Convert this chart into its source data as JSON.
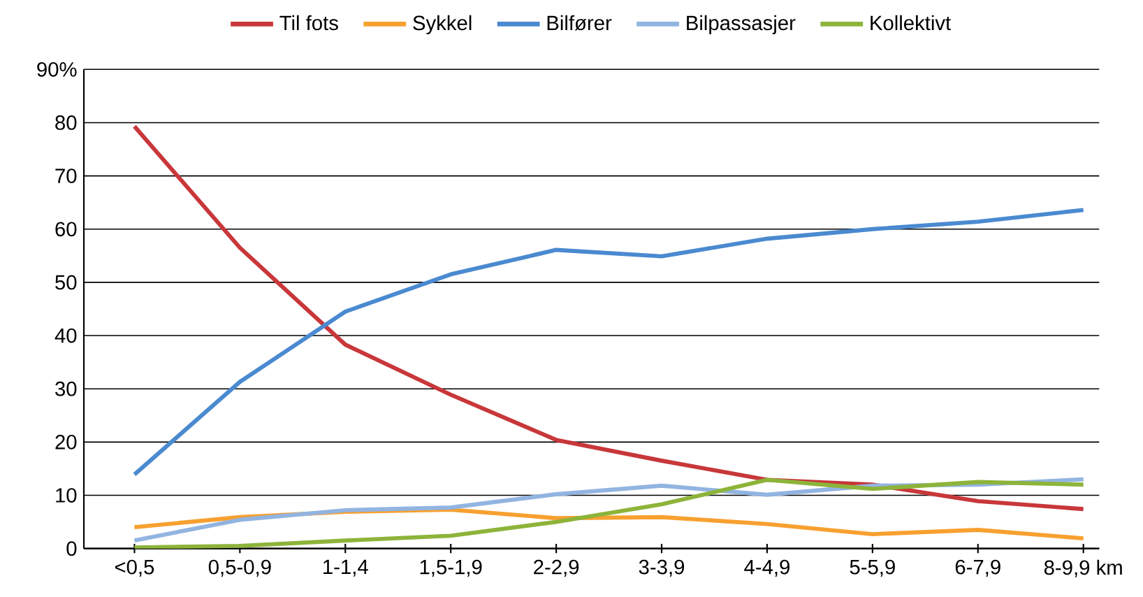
{
  "chart_data": {
    "type": "line",
    "categories": [
      "<0,5",
      "0,5-0,9",
      "1-1,4",
      "1,5-1,9",
      "2-2,9",
      "3-3,9",
      "4-4,9",
      "5-5,9",
      "6-7,9",
      "8-9,9 km"
    ],
    "series": [
      {
        "name": "Til fots",
        "color": "#c8373a",
        "values": [
          79.3,
          56.5,
          38.3,
          28.9,
          20.4,
          16.5,
          12.9,
          12.0,
          8.9,
          7.4
        ]
      },
      {
        "name": "Sykkel",
        "color": "#f7a030",
        "values": [
          4.0,
          5.9,
          6.9,
          7.3,
          5.7,
          5.9,
          4.6,
          2.7,
          3.5,
          1.9
        ]
      },
      {
        "name": "Bilfører",
        "color": "#4a8ad0",
        "values": [
          13.9,
          31.3,
          44.5,
          51.5,
          56.1,
          54.9,
          58.2,
          60.0,
          61.4,
          63.6
        ]
      },
      {
        "name": "Bilpassasjer",
        "color": "#92b4e0",
        "values": [
          1.5,
          5.4,
          7.2,
          7.7,
          10.2,
          11.8,
          10.1,
          11.8,
          12.0,
          13.0
        ]
      },
      {
        "name": "Kollektivt",
        "color": "#8db43a",
        "values": [
          0.2,
          0.5,
          1.5,
          2.4,
          5.0,
          8.3,
          12.9,
          11.2,
          12.5,
          12.0
        ]
      }
    ],
    "ylim": [
      0,
      90
    ],
    "yticks": [
      0,
      10,
      20,
      30,
      40,
      50,
      60,
      70,
      80,
      {
        "value": 90,
        "label": "90%"
      }
    ],
    "grid": "y",
    "legend": "top"
  }
}
